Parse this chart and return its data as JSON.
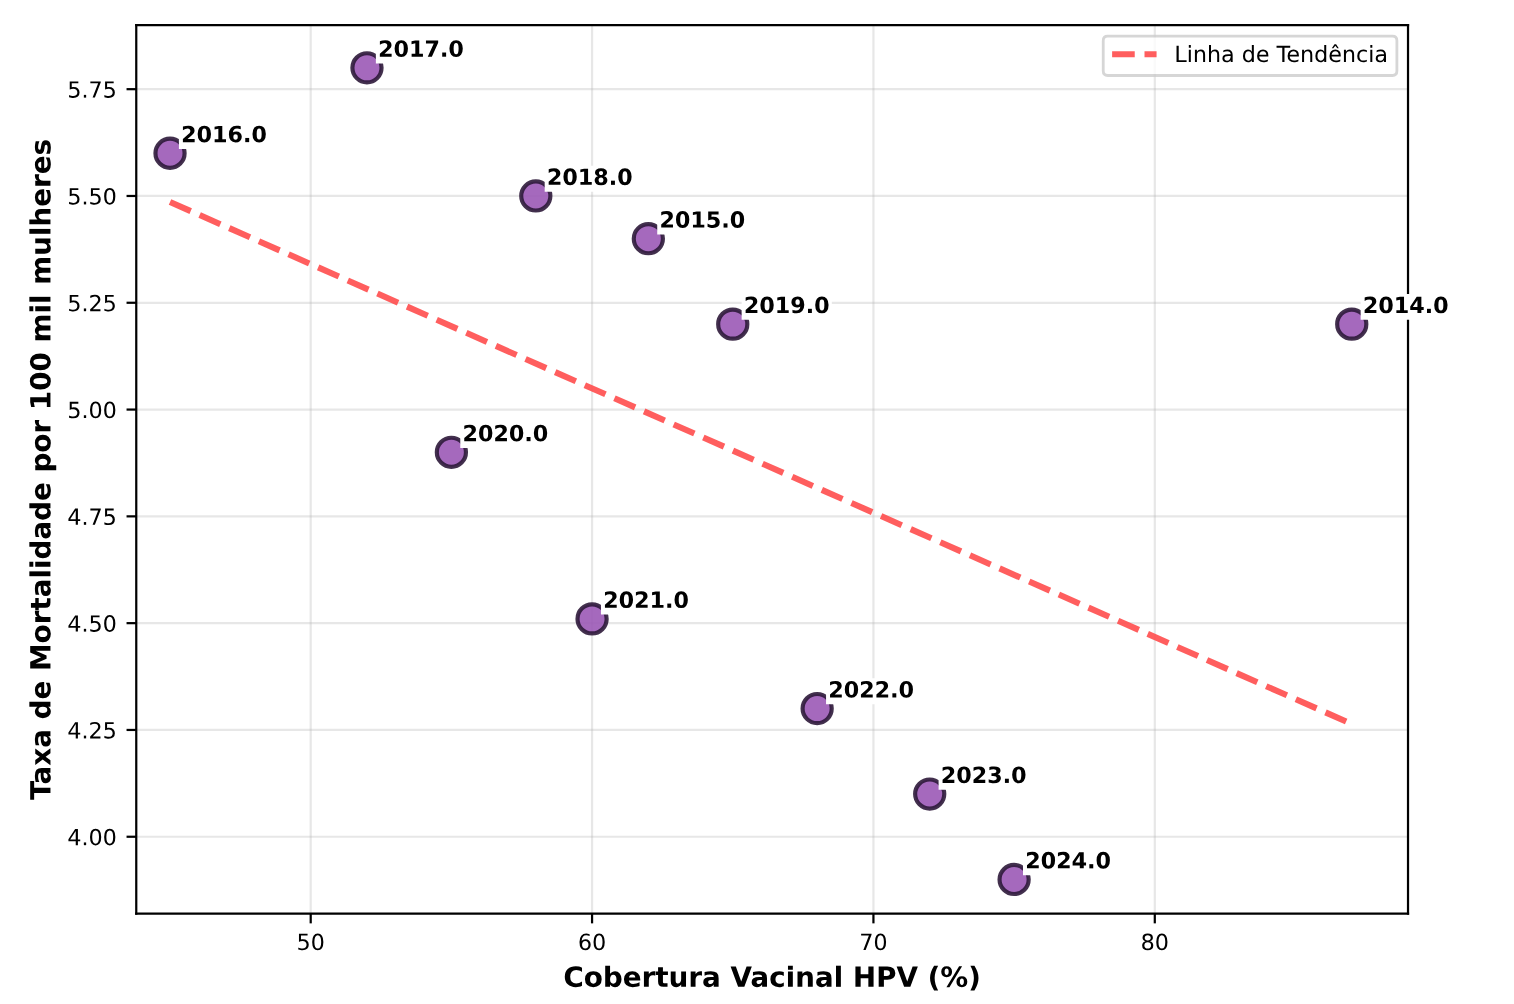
{
  "chart_data": {
    "type": "scatter",
    "xlabel": "Cobertura Vacinal HPV (%)",
    "ylabel": "Taxa de Mortalidade por 100 mil mulheres",
    "xlim": [
      43.8,
      89
    ],
    "ylim": [
      3.82,
      5.9
    ],
    "xticks": [
      50,
      60,
      70,
      80
    ],
    "yticks": [
      {
        "value": 4.0,
        "label": "4.00"
      },
      {
        "value": 4.25,
        "label": "4.25"
      },
      {
        "value": 4.5,
        "label": "4.50"
      },
      {
        "value": 4.75,
        "label": "4.75"
      },
      {
        "value": 5.0,
        "label": "5.00"
      },
      {
        "value": 5.25,
        "label": "5.25"
      },
      {
        "value": 5.5,
        "label": "5.50"
      },
      {
        "value": 5.75,
        "label": "5.75"
      }
    ],
    "grid": true,
    "legend": "top right",
    "series": [
      {
        "color": "#9b59b6",
        "marker": "circle",
        "x": [
          87,
          62,
          45,
          52,
          58,
          65,
          55,
          60,
          68,
          72,
          75
        ],
        "values": [
          5.2,
          5.4,
          5.6,
          5.8,
          5.5,
          5.2,
          4.9,
          4.51,
          4.3,
          4.1,
          3.9
        ]
      },
      {
        "type": "line",
        "name": "Linha de Tendência",
        "color": "#ff4d4d",
        "line_style": "dashed",
        "x": [
          45,
          87
        ],
        "values": [
          5.486,
          4.264
        ]
      }
    ],
    "annotations": [
      {
        "text": "2014.0",
        "x": 87,
        "y": 5.2
      },
      {
        "text": "2015.0",
        "x": 62,
        "y": 5.4
      },
      {
        "text": "2016.0",
        "x": 45,
        "y": 5.6
      },
      {
        "text": "2017.0",
        "x": 52,
        "y": 5.8
      },
      {
        "text": "2018.0",
        "x": 58,
        "y": 5.5
      },
      {
        "text": "2019.0",
        "x": 65,
        "y": 5.2
      },
      {
        "text": "2020.0",
        "x": 55,
        "y": 4.9
      },
      {
        "text": "2021.0",
        "x": 60,
        "y": 4.51
      },
      {
        "text": "2022.0",
        "x": 68,
        "y": 4.3
      },
      {
        "text": "2023.0",
        "x": 72,
        "y": 4.1
      },
      {
        "text": "2024.0",
        "x": 75,
        "y": 3.9
      }
    ]
  }
}
